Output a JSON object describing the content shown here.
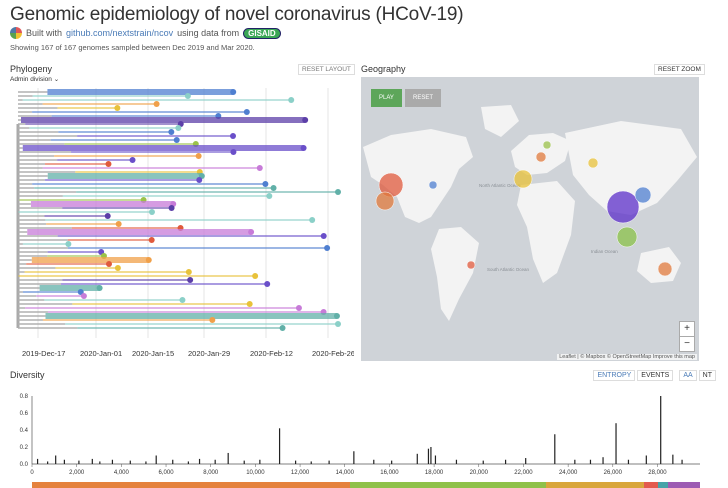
{
  "header": {
    "title": "Genomic epidemiology of novel coronavirus (HCoV-19)",
    "built_with": "Built with",
    "repo_link": "github.com/nextstrain/ncov",
    "using_data": "using data from",
    "gisaid": "GISAID",
    "summary": "Showing 167 of 167 genomes sampled between Dec 2019 and Mar 2020."
  },
  "phylogeny": {
    "title": "Phylogeny",
    "reset_layout": "RESET LAYOUT",
    "color_by": "Admin division",
    "axis_dates": [
      "2019-Dec-17",
      "2020-Jan-01",
      "2020-Jan-15",
      "2020-Jan-29",
      "2020-Feb-12",
      "2020-Feb-26"
    ]
  },
  "geography": {
    "title": "Geography",
    "reset_zoom": "RESET ZOOM",
    "play": "PLAY",
    "reset": "RESET",
    "zoom_in": "+",
    "zoom_out": "−",
    "attribution": "Leaflet | © Mapbox © OpenStreetMap Improve this map",
    "place_labels": [
      "North Atlantic Ocean",
      "South Atlantic Ocean",
      "Indian Ocean"
    ]
  },
  "diversity": {
    "title": "Diversity",
    "entropy_btn": "ENTROPY",
    "events_btn": "EVENTS",
    "aa_btn": "AA",
    "nt_btn": "NT"
  },
  "chart_data": {
    "type": "bar",
    "ylim": [
      0,
      0.8
    ],
    "yticks": [
      "0.0",
      "0.2",
      "0.4",
      "0.6",
      "0.8"
    ],
    "xlim": [
      0,
      29903
    ],
    "xticks": [
      "0",
      "2,000",
      "4,000",
      "6,000",
      "8,000",
      "10,000",
      "12,000",
      "14,000",
      "16,000",
      "18,000",
      "20,000",
      "22,000",
      "24,000",
      "26,000",
      "28,000"
    ],
    "points": [
      {
        "x": 250,
        "y": 0.06
      },
      {
        "x": 700,
        "y": 0.03
      },
      {
        "x": 1060,
        "y": 0.1
      },
      {
        "x": 1450,
        "y": 0.05
      },
      {
        "x": 2100,
        "y": 0.04
      },
      {
        "x": 2700,
        "y": 0.06
      },
      {
        "x": 3037,
        "y": 0.03
      },
      {
        "x": 3600,
        "y": 0.05
      },
      {
        "x": 4400,
        "y": 0.04
      },
      {
        "x": 5100,
        "y": 0.03
      },
      {
        "x": 5560,
        "y": 0.1
      },
      {
        "x": 6300,
        "y": 0.05
      },
      {
        "x": 7000,
        "y": 0.03
      },
      {
        "x": 7500,
        "y": 0.06
      },
      {
        "x": 8200,
        "y": 0.05
      },
      {
        "x": 8782,
        "y": 0.13
      },
      {
        "x": 9500,
        "y": 0.04
      },
      {
        "x": 10200,
        "y": 0.05
      },
      {
        "x": 11083,
        "y": 0.42
      },
      {
        "x": 11800,
        "y": 0.04
      },
      {
        "x": 12500,
        "y": 0.03
      },
      {
        "x": 13300,
        "y": 0.04
      },
      {
        "x": 14408,
        "y": 0.15
      },
      {
        "x": 15300,
        "y": 0.05
      },
      {
        "x": 16100,
        "y": 0.04
      },
      {
        "x": 17247,
        "y": 0.12
      },
      {
        "x": 17747,
        "y": 0.18
      },
      {
        "x": 17858,
        "y": 0.2
      },
      {
        "x": 18060,
        "y": 0.1
      },
      {
        "x": 19000,
        "y": 0.05
      },
      {
        "x": 20200,
        "y": 0.04
      },
      {
        "x": 21200,
        "y": 0.05
      },
      {
        "x": 22100,
        "y": 0.07
      },
      {
        "x": 23403,
        "y": 0.35
      },
      {
        "x": 24300,
        "y": 0.05
      },
      {
        "x": 25000,
        "y": 0.05
      },
      {
        "x": 25563,
        "y": 0.08
      },
      {
        "x": 26144,
        "y": 0.48
      },
      {
        "x": 26700,
        "y": 0.05
      },
      {
        "x": 27500,
        "y": 0.1
      },
      {
        "x": 28144,
        "y": 0.8
      },
      {
        "x": 28688,
        "y": 0.11
      },
      {
        "x": 29100,
        "y": 0.05
      }
    ]
  }
}
